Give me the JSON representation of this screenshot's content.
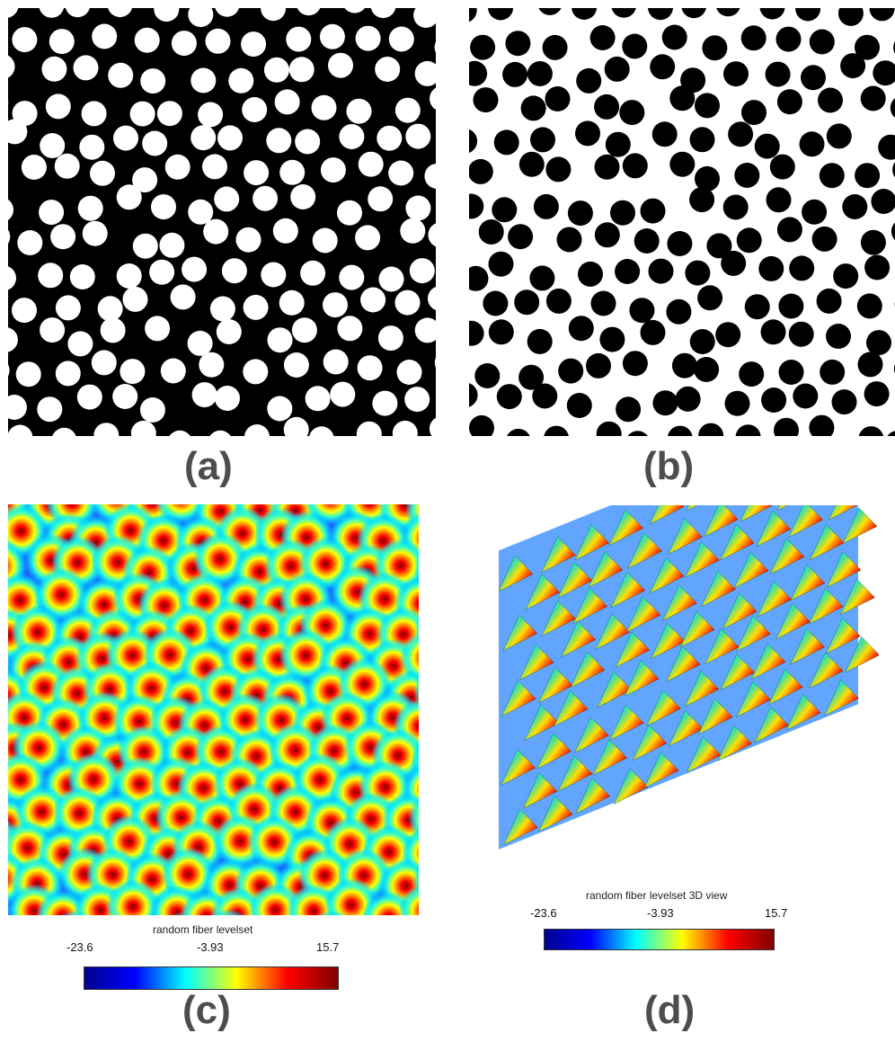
{
  "panels": {
    "a": {
      "letter": "(a)",
      "background": "#000000",
      "fiber_color": "#ffffff"
    },
    "b": {
      "letter": "(b)",
      "background": "#ffffff",
      "fiber_color": "#000000"
    },
    "c": {
      "letter": "(c)",
      "colorbar": {
        "title": "random fiber levelset",
        "min_label": "-23.6",
        "mid_label": "-3.93",
        "max_label": "15.7",
        "min": -23.6,
        "mid": -3.93,
        "max": 15.7
      }
    },
    "d": {
      "letter": "(d)",
      "colorbar": {
        "title": "random fiber levelset 3D view",
        "min_label": "-23.6",
        "mid_label": "-3.93",
        "max_label": "15.7",
        "min": -23.6,
        "mid": -3.93,
        "max": 15.7
      }
    }
  },
  "colormap": [
    "#00008f",
    "#0000ff",
    "#00ffff",
    "#ffff00",
    "#ff0000",
    "#800000"
  ]
}
